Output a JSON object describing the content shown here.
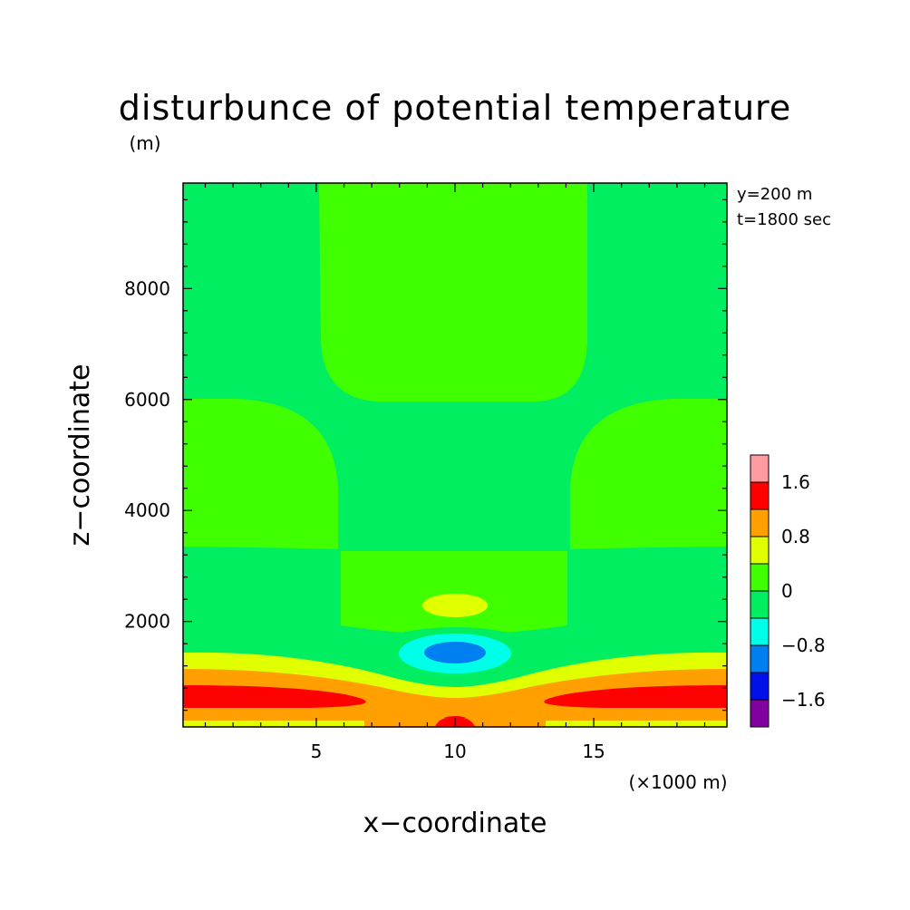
{
  "chart_data": {
    "type": "contour",
    "title": "disturbunce of potential temperature",
    "y_unit": "(m)",
    "x_unit": "(×1000 m)",
    "xlabel": "x−coordinate",
    "ylabel": "z−coordinate",
    "xlim": [
      0.2,
      19.8
    ],
    "ylim": [
      100,
      9900
    ],
    "x_ticks": [
      5,
      10,
      15
    ],
    "y_ticks": [
      2000,
      4000,
      6000,
      8000
    ],
    "annotations": [
      "y=200 m",
      "t=1800 sec"
    ],
    "colorbar": {
      "levels": [
        -2.0,
        -1.6,
        -1.2,
        -0.8,
        -0.4,
        0.0,
        0.4,
        0.8,
        1.2,
        1.6,
        2.0
      ],
      "colors": [
        "#8000a0",
        "#0010e8",
        "#0080f0",
        "#00ffe8",
        "#00ee60",
        "#40ff00",
        "#e0ff00",
        "#ffa000",
        "#ff0000",
        "#ff9aa0"
      ],
      "tick_labels": [
        "−1.6",
        "−0.8",
        "0",
        "0.8",
        "1.6"
      ],
      "tick_values": [
        -1.6,
        -0.8,
        0.0,
        0.8,
        1.6
      ]
    },
    "regions": [
      {
        "name": "background",
        "color": "#00ee60"
      },
      {
        "name": "upper-center-positive",
        "color": "#40ff00"
      },
      {
        "name": "left-mid-positive",
        "color": "#40ff00"
      },
      {
        "name": "right-mid-positive",
        "color": "#40ff00"
      },
      {
        "name": "lower-center-positive",
        "color": "#40ff00"
      },
      {
        "name": "small-positive-blob",
        "color": "#e0ff00"
      },
      {
        "name": "negative-ring",
        "color": "#00ee60"
      },
      {
        "name": "negative-cyan",
        "color": "#00ffe8"
      },
      {
        "name": "negative-core",
        "color": "#0080f0"
      },
      {
        "name": "surface-yellow",
        "color": "#e0ff00"
      },
      {
        "name": "surface-orange",
        "color": "#ffa000"
      },
      {
        "name": "surface-red-left",
        "color": "#ff0000"
      },
      {
        "name": "surface-red-right",
        "color": "#ff0000"
      },
      {
        "name": "surface-red-center",
        "color": "#ff0000"
      },
      {
        "name": "bottom-yellow-strip",
        "color": "#e0ff00"
      }
    ]
  }
}
